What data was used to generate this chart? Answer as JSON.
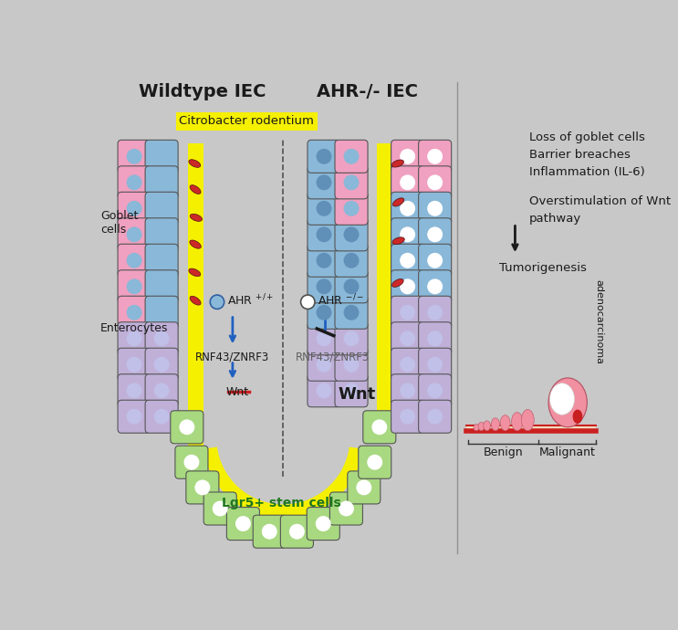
{
  "bg_color": "#c8c8c8",
  "title_left": "Wildtype IEC",
  "title_right": "AHR-/- IEC",
  "label_goblet": "Goblet\ncells",
  "label_enterocytes": "Enterocytes",
  "label_citrobacter": "Citrobacter rodentium",
  "label_rnf_left": "RNF43/ZNRF3",
  "label_rnf_right": "RNF43/ZNRF3",
  "label_wnt_left": "Wnt",
  "label_wnt_right": "Wnt",
  "label_lgr5": "Lgr5+ stem cells",
  "right_text1": "Loss of goblet cells\nBarrier breaches\nInflammation (IL-6)",
  "right_text2": "Overstimulation of Wnt\npathway",
  "right_text3": "Tumorigenesis",
  "right_text4": "adenocarcinoma",
  "label_benign": "Benign",
  "label_malignant": "Malignant",
  "colors": {
    "yellow": "#f5f000",
    "pink": "#f0a0c0",
    "blue_cell": "#8ab8d8",
    "green_cell": "#a8d880",
    "purple_cell": "#c0b0d8",
    "red_bacteria": "#cc2828",
    "blue_arrow": "#2060c0",
    "dark_text": "#1a1a1a",
    "red_line": "#cc2020",
    "green_text": "#207820",
    "tumor_pink": "#f090a0",
    "tumor_red": "#c82020",
    "sep_color": "#808080"
  }
}
